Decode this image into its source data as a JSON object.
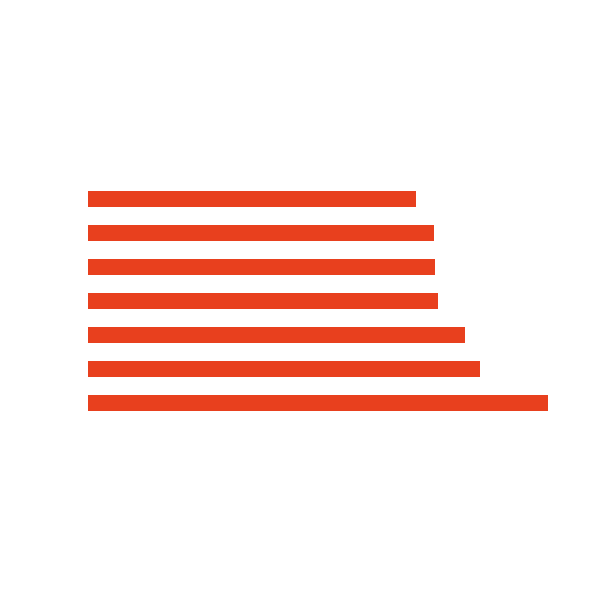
{
  "logo": {
    "name": "horizontal-stripes-logo",
    "color": "#e8401e",
    "stripe_lengths": [
      0.713,
      0.752,
      0.754,
      0.76,
      0.82,
      0.853,
      1.0
    ]
  }
}
